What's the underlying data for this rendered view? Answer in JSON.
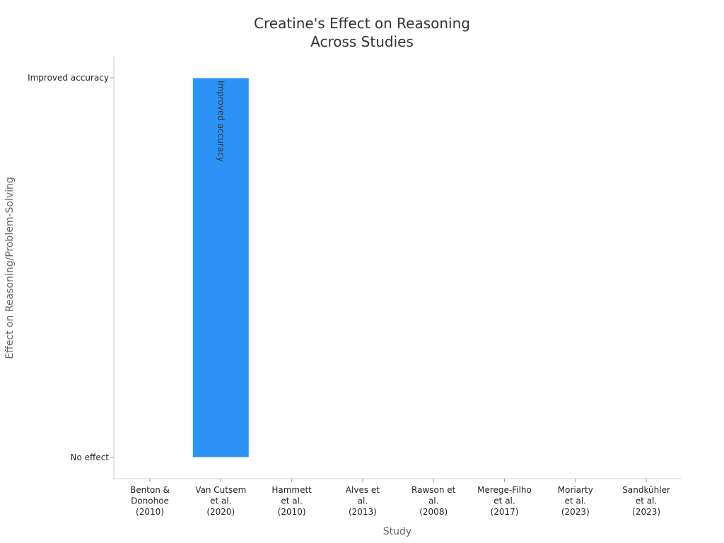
{
  "chart_data": {
    "type": "bar",
    "title_lines": [
      "Creatine's Effect on Reasoning",
      "Across Studies"
    ],
    "xlabel": "Study",
    "ylabel": "Effect on Reasoning/Problem-Solving",
    "categories": [
      [
        "Benton &",
        "Donohoe",
        "(2010)"
      ],
      [
        "Van Cutsem",
        "et al.",
        "(2020)"
      ],
      [
        "Hammett",
        "et al.",
        "(2010)"
      ],
      [
        "Alves et",
        "al.",
        "(2013)"
      ],
      [
        "Rawson et",
        "al.",
        "(2008)"
      ],
      [
        "Merege-Filho",
        "et al.",
        "(2017)"
      ],
      [
        "Moriarty",
        "et al.",
        "(2023)"
      ],
      [
        "Sandkühler",
        "et al.",
        "(2023)"
      ]
    ],
    "y_categories": [
      "No effect",
      "Improved accuracy"
    ],
    "values": [
      0,
      1,
      0,
      0,
      0,
      0,
      0,
      0
    ],
    "bar_labels": [
      "",
      "Improved accuracy",
      "",
      "",
      "",
      "",
      "",
      ""
    ],
    "ylim": [
      -0.056,
      1.0
    ],
    "grid": false,
    "colors": {
      "bar": "#2d92f5",
      "axis": "#cccccc",
      "tick": "#999999"
    }
  }
}
